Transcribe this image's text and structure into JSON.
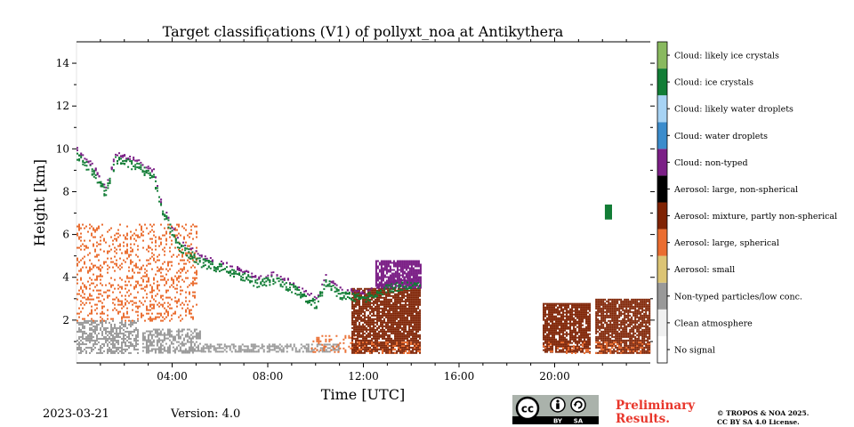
{
  "chart_data": {
    "type": "heatmap",
    "title": "Target classifications (V1) of pollyxt_noa at Antikythera",
    "xlabel": "Time [UTC]",
    "ylabel": "Height [km]",
    "xlim": [
      0,
      24
    ],
    "ylim": [
      0,
      15
    ],
    "xticks": [
      {
        "value": 4,
        "label": "04:00"
      },
      {
        "value": 8,
        "label": "08:00"
      },
      {
        "value": 12,
        "label": "12:00"
      },
      {
        "value": 16,
        "label": "16:00"
      },
      {
        "value": 20,
        "label": "20:00"
      }
    ],
    "yticks": [
      {
        "value": 2,
        "label": "2"
      },
      {
        "value": 4,
        "label": "4"
      },
      {
        "value": 6,
        "label": "6"
      },
      {
        "value": 8,
        "label": "8"
      },
      {
        "value": 10,
        "label": "10"
      },
      {
        "value": 12,
        "label": "12"
      },
      {
        "value": 14,
        "label": "14"
      }
    ],
    "classes": [
      {
        "label": "No signal",
        "color": "#ffffff"
      },
      {
        "label": "Clean atmosphere",
        "color": "#f0f0f0"
      },
      {
        "label": "Non-typed particles/low conc.",
        "color": "#999999"
      },
      {
        "label": "Aerosol: small",
        "color": "#dcc474"
      },
      {
        "label": "Aerosol: large, spherical",
        "color": "#ea6d30"
      },
      {
        "label": "Aerosol: mixture, partly non-spherical",
        "color": "#7f2304"
      },
      {
        "label": "Aerosol: large, non-spherical",
        "color": "#000000"
      },
      {
        "label": "Cloud: non-typed",
        "color": "#7b1f86"
      },
      {
        "label": "Cloud: water droplets",
        "color": "#3b8ccc"
      },
      {
        "label": "Cloud: likely water droplets",
        "color": "#a7d3f4"
      },
      {
        "label": "Cloud: ice crystals",
        "color": "#127d36"
      },
      {
        "label": "Cloud: likely ice crystals",
        "color": "#89b95f"
      }
    ],
    "regions": [
      {
        "class": 2,
        "t0": 0.0,
        "t1": 2.55,
        "h0": 0.5,
        "h1": 2.0
      },
      {
        "class": 2,
        "t0": 2.75,
        "t1": 5.2,
        "h0": 0.5,
        "h1": 1.6
      },
      {
        "class": 2,
        "t0": 5.2,
        "t1": 11.0,
        "h0": 0.5,
        "h1": 0.9
      },
      {
        "class": 4,
        "t0": 0.0,
        "t1": 5.0,
        "h0": 2.0,
        "h1": 6.5
      },
      {
        "class": 4,
        "t0": 9.8,
        "t1": 11.8,
        "h0": 0.5,
        "h1": 1.3
      },
      {
        "class": 5,
        "t0": 11.5,
        "t1": 14.4,
        "h0": 0.5,
        "h1": 3.5
      },
      {
        "class": 4,
        "t0": 11.5,
        "t1": 14.4,
        "h0": 0.5,
        "h1": 1.0
      },
      {
        "class": 5,
        "t0": 19.5,
        "t1": 21.5,
        "h0": 0.5,
        "h1": 2.8
      },
      {
        "class": 4,
        "t0": 19.5,
        "t1": 21.5,
        "h0": 0.5,
        "h1": 1.0
      },
      {
        "class": 5,
        "t0": 21.7,
        "t1": 24.0,
        "h0": 0.5,
        "h1": 3.0
      },
      {
        "class": 4,
        "t0": 21.7,
        "t1": 24.0,
        "h0": 0.5,
        "h1": 1.0
      },
      {
        "class": 7,
        "t0": 12.5,
        "t1": 14.4,
        "h0": 3.5,
        "h1": 4.8
      }
    ],
    "cloud_path": [
      [
        0.0,
        9.8
      ],
      [
        0.7,
        9.0
      ],
      [
        1.2,
        8.0
      ],
      [
        1.6,
        9.6
      ],
      [
        2.5,
        9.3
      ],
      [
        3.2,
        8.8
      ],
      [
        3.5,
        7.4
      ],
      [
        4.2,
        5.6
      ],
      [
        5.2,
        4.8
      ],
      [
        6.4,
        4.4
      ],
      [
        7.6,
        3.8
      ],
      [
        8.2,
        4.0
      ],
      [
        9.2,
        3.5
      ],
      [
        10.0,
        2.8
      ],
      [
        10.4,
        3.9
      ],
      [
        11.0,
        3.3
      ],
      [
        12.0,
        3.1
      ],
      [
        13.0,
        3.6
      ],
      [
        14.4,
        3.8
      ]
    ],
    "cloud_color": "#127d36",
    "cloud_top_color": "#7b1f86",
    "high_cloud": {
      "t0": 22.1,
      "t1": 22.4,
      "h0": 6.7,
      "h1": 7.4
    }
  },
  "footer": {
    "date": "2023-03-21",
    "version": "Version: 4.0",
    "preliminary_line1": "Preliminary",
    "preliminary_line2": "Results.",
    "copyright_line1": "© TROPOS & NOA 2025.",
    "copyright_line2": "CC BY SA 4.0 License.",
    "cc_label": "cc",
    "cc_by": "BY",
    "cc_sa": "SA"
  }
}
